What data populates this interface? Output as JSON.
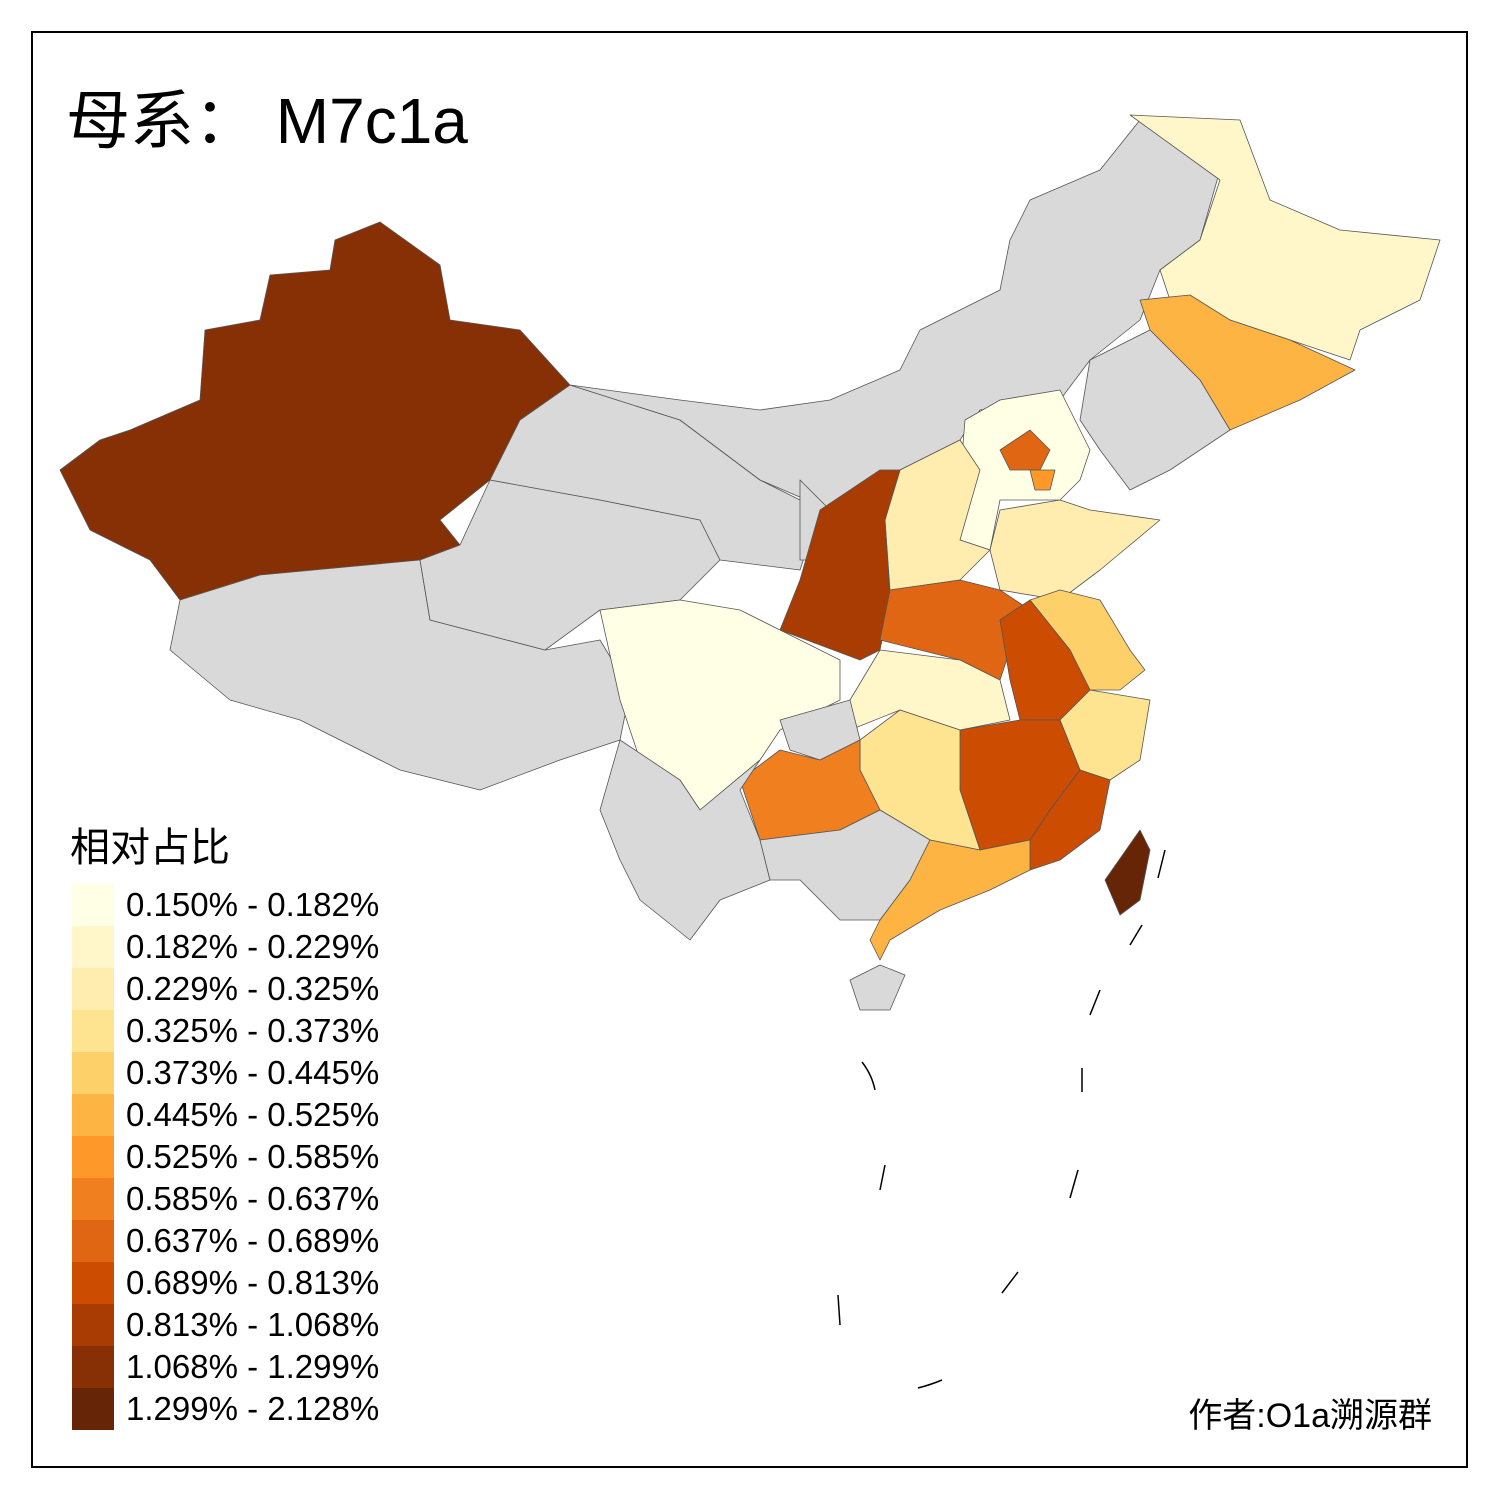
{
  "title": {
    "prefix": "母系：",
    "haplogroup": "M7c1a"
  },
  "legend": {
    "title": "相对占比",
    "items": [
      {
        "label": "0.150% - 0.182%",
        "color": "#FFFFE5"
      },
      {
        "label": "0.182% - 0.229%",
        "color": "#FFF7C9"
      },
      {
        "label": "0.229% - 0.325%",
        "color": "#FEEDAF"
      },
      {
        "label": "0.325% - 0.373%",
        "color": "#FEE391"
      },
      {
        "label": "0.373% - 0.445%",
        "color": "#FED06A"
      },
      {
        "label": "0.445% - 0.525%",
        "color": "#FEB443"
      },
      {
        "label": "0.525% - 0.585%",
        "color": "#FE9929"
      },
      {
        "label": "0.585% - 0.637%",
        "color": "#F07F1F"
      },
      {
        "label": "0.637% - 0.689%",
        "color": "#E06614"
      },
      {
        "label": "0.689% - 0.813%",
        "color": "#CC4C02"
      },
      {
        "label": "0.813% - 1.068%",
        "color": "#A83C03"
      },
      {
        "label": "1.068% - 1.299%",
        "color": "#883005"
      },
      {
        "label": "1.299% - 2.128%",
        "color": "#662506"
      }
    ]
  },
  "no_data_color": "#D9D9D9",
  "author": "作者:O1a溯源群"
}
